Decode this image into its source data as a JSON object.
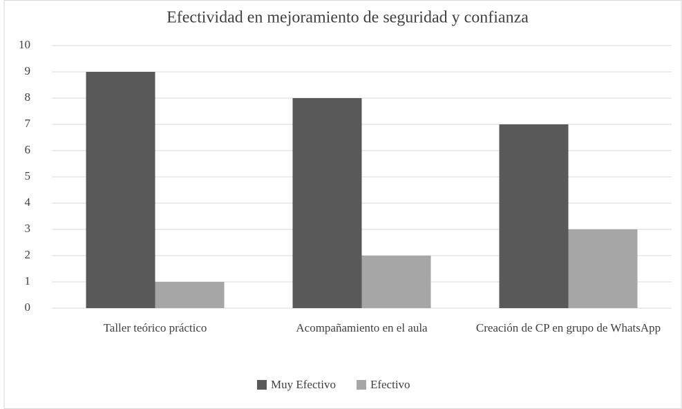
{
  "chart_data": {
    "type": "bar",
    "title": "Efectividad en mejoramiento de seguridad y confianza",
    "categories": [
      "Taller teórico práctico",
      "Acompañamiento en el aula",
      "Creación de CP en grupo de WhatsApp"
    ],
    "series": [
      {
        "name": "Muy Efectivo",
        "color": "#595959",
        "values": [
          9,
          8,
          7
        ]
      },
      {
        "name": "Efectivo",
        "color": "#a6a6a6",
        "values": [
          1,
          2,
          3
        ]
      }
    ],
    "ylim": [
      0,
      10
    ],
    "yticks": [
      0,
      1,
      2,
      3,
      4,
      5,
      6,
      7,
      8,
      9,
      10
    ],
    "grid": true,
    "legend": "bottom"
  }
}
